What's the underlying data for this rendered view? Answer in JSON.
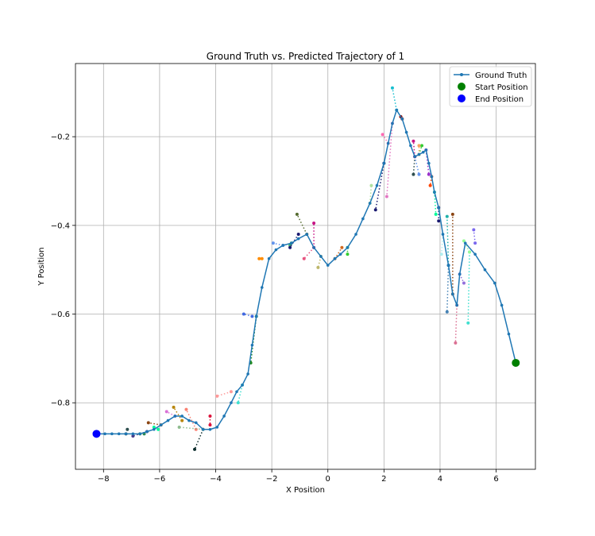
{
  "chart_data": {
    "type": "line",
    "title": "Ground Truth vs. Predicted Trajectory of 1",
    "xlabel": "X Position",
    "ylabel": "Y Position",
    "xlim": [
      -9.0,
      7.4
    ],
    "ylim": [
      -0.95,
      -0.035
    ],
    "grid": true,
    "legend_position": "top-right",
    "xticks": [
      -8,
      -6,
      -4,
      -2,
      0,
      2,
      4,
      6
    ],
    "yticks": [
      -0.8,
      -0.6,
      -0.4,
      -0.2
    ],
    "xtick_labels": [
      "−8",
      "−6",
      "−4",
      "−2",
      "0",
      "2",
      "4",
      "6"
    ],
    "ytick_labels": [
      "−0.8",
      "−0.6",
      "−0.4",
      "−0.2"
    ],
    "legend": [
      "Ground Truth",
      "Start Position",
      "End Position"
    ],
    "colors": {
      "ground_truth": "#1f77b4",
      "start": "#008000",
      "end": "#0000ff",
      "grid": "#b0b0b0"
    },
    "ground_truth": {
      "x": [
        6.7,
        6.45,
        6.2,
        5.95,
        5.6,
        5.25,
        4.9,
        4.7,
        4.6,
        4.45,
        4.3,
        4.1,
        3.95,
        3.8,
        3.7,
        3.6,
        3.5,
        3.4,
        3.25,
        3.1,
        2.95,
        2.8,
        2.65,
        2.45,
        2.3,
        2.15,
        2.0,
        1.75,
        1.5,
        1.25,
        1.0,
        0.7,
        0.45,
        0.25,
        0.0,
        -0.25,
        -0.5,
        -0.75,
        -1.05,
        -1.3,
        -1.6,
        -1.85,
        -2.1,
        -2.35,
        -2.55,
        -2.7,
        -2.85,
        -3.05,
        -3.25,
        -3.45,
        -3.7,
        -3.95,
        -4.2,
        -4.45,
        -4.7,
        -4.95,
        -5.2,
        -5.45,
        -5.7,
        -5.95,
        -6.2,
        -6.45,
        -6.7,
        -6.95,
        -7.2,
        -7.45,
        -7.7,
        -7.95,
        -8.25
      ],
      "y": [
        -0.71,
        -0.645,
        -0.58,
        -0.53,
        -0.5,
        -0.465,
        -0.44,
        -0.51,
        -0.58,
        -0.555,
        -0.49,
        -0.42,
        -0.36,
        -0.325,
        -0.29,
        -0.26,
        -0.23,
        -0.235,
        -0.24,
        -0.245,
        -0.22,
        -0.19,
        -0.16,
        -0.14,
        -0.17,
        -0.215,
        -0.26,
        -0.31,
        -0.35,
        -0.385,
        -0.42,
        -0.45,
        -0.465,
        -0.475,
        -0.49,
        -0.47,
        -0.45,
        -0.42,
        -0.43,
        -0.44,
        -0.445,
        -0.455,
        -0.475,
        -0.54,
        -0.605,
        -0.67,
        -0.735,
        -0.76,
        -0.775,
        -0.8,
        -0.83,
        -0.855,
        -0.86,
        -0.86,
        -0.845,
        -0.84,
        -0.83,
        -0.83,
        -0.84,
        -0.85,
        -0.86,
        -0.865,
        -0.87,
        -0.87,
        -0.87,
        -0.87,
        -0.87,
        -0.87,
        -0.87
      ]
    },
    "start_point": {
      "x": 6.7,
      "y": -0.71
    },
    "end_point": {
      "x": -8.25,
      "y": -0.87
    },
    "predicted_segments": [
      {
        "x": [
          2.45,
          2.3
        ],
        "y": [
          -0.14,
          -0.09
        ],
        "color": "#17becf"
      },
      {
        "x": [
          2.3,
          2.1
        ],
        "y": [
          -0.17,
          -0.335
        ],
        "color": "#e377c2"
      },
      {
        "x": [
          2.15,
          1.95
        ],
        "y": [
          -0.215,
          -0.195
        ],
        "color": "#ff69b4"
      },
      {
        "x": [
          2.0,
          1.7
        ],
        "y": [
          -0.26,
          -0.365
        ],
        "color": "#191970"
      },
      {
        "x": [
          1.5,
          1.55
        ],
        "y": [
          -0.35,
          -0.31
        ],
        "color": "#b0e0a0"
      },
      {
        "x": [
          2.65,
          2.6
        ],
        "y": [
          -0.16,
          -0.155
        ],
        "color": "#8b0000"
      },
      {
        "x": [
          3.1,
          3.05
        ],
        "y": [
          -0.245,
          -0.285
        ],
        "color": "#2f4f4f"
      },
      {
        "x": [
          3.1,
          3.25
        ],
        "y": [
          -0.245,
          -0.285
        ],
        "color": "#6495ed"
      },
      {
        "x": [
          3.1,
          3.05
        ],
        "y": [
          -0.245,
          -0.21
        ],
        "color": "#c71585"
      },
      {
        "x": [
          3.25,
          3.35
        ],
        "y": [
          -0.24,
          -0.22
        ],
        "color": "#32cd32"
      },
      {
        "x": [
          3.25,
          3.25
        ],
        "y": [
          -0.24,
          -0.22
        ],
        "color": "#f4a460"
      },
      {
        "x": [
          3.5,
          3.6
        ],
        "y": [
          -0.23,
          -0.285
        ],
        "color": "#9932cc"
      },
      {
        "x": [
          3.7,
          3.65
        ],
        "y": [
          -0.29,
          -0.31
        ],
        "color": "#ff4500"
      },
      {
        "x": [
          3.8,
          3.85
        ],
        "y": [
          -0.325,
          -0.375
        ],
        "color": "#00fa9a"
      },
      {
        "x": [
          3.95,
          3.95
        ],
        "y": [
          -0.36,
          -0.39
        ],
        "color": "#191970"
      },
      {
        "x": [
          4.1,
          4.05
        ],
        "y": [
          -0.42,
          -0.465
        ],
        "color": "#afeeee"
      },
      {
        "x": [
          4.3,
          4.25
        ],
        "y": [
          -0.49,
          -0.38
        ],
        "color": "#20b2aa"
      },
      {
        "x": [
          4.3,
          4.25
        ],
        "y": [
          -0.49,
          -0.595
        ],
        "color": "#4682b4"
      },
      {
        "x": [
          4.45,
          4.45
        ],
        "y": [
          -0.555,
          -0.375
        ],
        "color": "#8b4513"
      },
      {
        "x": [
          4.6,
          4.55
        ],
        "y": [
          -0.58,
          -0.665
        ],
        "color": "#db7093"
      },
      {
        "x": [
          4.7,
          4.85
        ],
        "y": [
          -0.51,
          -0.53
        ],
        "color": "#9370db"
      },
      {
        "x": [
          5.05,
          5.0
        ],
        "y": [
          -0.46,
          -0.62
        ],
        "color": "#40e0d0"
      },
      {
        "x": [
          5.05,
          4.85
        ],
        "y": [
          -0.46,
          -0.435
        ],
        "color": "#98fb98"
      },
      {
        "x": [
          5.25,
          5.2
        ],
        "y": [
          -0.44,
          -0.41
        ],
        "color": "#7b68ee"
      },
      {
        "x": [
          0.7,
          0.7
        ],
        "y": [
          -0.45,
          -0.465
        ],
        "color": "#32cd32"
      },
      {
        "x": [
          0.25,
          0.5
        ],
        "y": [
          -0.475,
          -0.45
        ],
        "color": "#d2691e"
      },
      {
        "x": [
          -0.25,
          -0.35
        ],
        "y": [
          -0.47,
          -0.495
        ],
        "color": "#bdb76b"
      },
      {
        "x": [
          -0.5,
          -0.85
        ],
        "y": [
          -0.45,
          -0.475
        ],
        "color": "#e75480"
      },
      {
        "x": [
          -0.5,
          -0.5
        ],
        "y": [
          -0.45,
          -0.395
        ],
        "color": "#c71585"
      },
      {
        "x": [
          -0.75,
          -1.1
        ],
        "y": [
          -0.42,
          -0.375
        ],
        "color": "#556b2f"
      },
      {
        "x": [
          -1.3,
          -1.35
        ],
        "y": [
          -0.44,
          -0.445
        ],
        "color": "#3cb371"
      },
      {
        "x": [
          -1.05,
          -1.35
        ],
        "y": [
          -0.42,
          -0.45
        ],
        "color": "#191970"
      },
      {
        "x": [
          -1.6,
          -1.95
        ],
        "y": [
          -0.445,
          -0.44
        ],
        "color": "#6495ed"
      },
      {
        "x": [
          -2.35,
          -2.45
        ],
        "y": [
          -0.475,
          -0.475
        ],
        "color": "#ff8c00"
      },
      {
        "x": [
          -2.55,
          -2.75
        ],
        "y": [
          -0.605,
          -0.71
        ],
        "color": "#228b22"
      },
      {
        "x": [
          -2.7,
          -3.0
        ],
        "y": [
          -0.605,
          -0.6
        ],
        "color": "#4169e1"
      },
      {
        "x": [
          -3.05,
          -3.2
        ],
        "y": [
          -0.76,
          -0.8
        ],
        "color": "#40e0d0"
      },
      {
        "x": [
          -3.45,
          -3.95
        ],
        "y": [
          -0.775,
          -0.785
        ],
        "color": "#ff9999"
      },
      {
        "x": [
          -4.2,
          -4.2
        ],
        "y": [
          -0.83,
          -0.85
        ],
        "color": "#dc143c"
      },
      {
        "x": [
          -4.45,
          -4.75
        ],
        "y": [
          -0.86,
          -0.905
        ],
        "color": "#0b2b2b"
      },
      {
        "x": [
          -4.7,
          -5.05
        ],
        "y": [
          -0.86,
          -0.815
        ],
        "color": "#fa8072"
      },
      {
        "x": [
          -5.2,
          -5.5
        ],
        "y": [
          -0.84,
          -0.81
        ],
        "color": "#b8860b"
      },
      {
        "x": [
          -5.45,
          -5.75
        ],
        "y": [
          -0.83,
          -0.82
        ],
        "color": "#da70d6"
      },
      {
        "x": [
          -5.95,
          -6.4
        ],
        "y": [
          -0.85,
          -0.845
        ],
        "color": "#8b4513"
      },
      {
        "x": [
          -6.2,
          -6.05
        ],
        "y": [
          -0.855,
          -0.86
        ],
        "color": "#00fa9a"
      },
      {
        "x": [
          -6.45,
          -6.95
        ],
        "y": [
          -0.865,
          -0.875
        ],
        "color": "#483d8b"
      },
      {
        "x": [
          -6.7,
          -6.55
        ],
        "y": [
          -0.87,
          -0.87
        ],
        "color": "#2e8b57"
      },
      {
        "x": [
          -7.2,
          -7.15
        ],
        "y": [
          -0.87,
          -0.86
        ],
        "color": "#2f4f4f"
      },
      {
        "x": [
          -4.45,
          -5.3
        ],
        "y": [
          -0.86,
          -0.855
        ],
        "color": "#8fbc8f"
      }
    ]
  }
}
